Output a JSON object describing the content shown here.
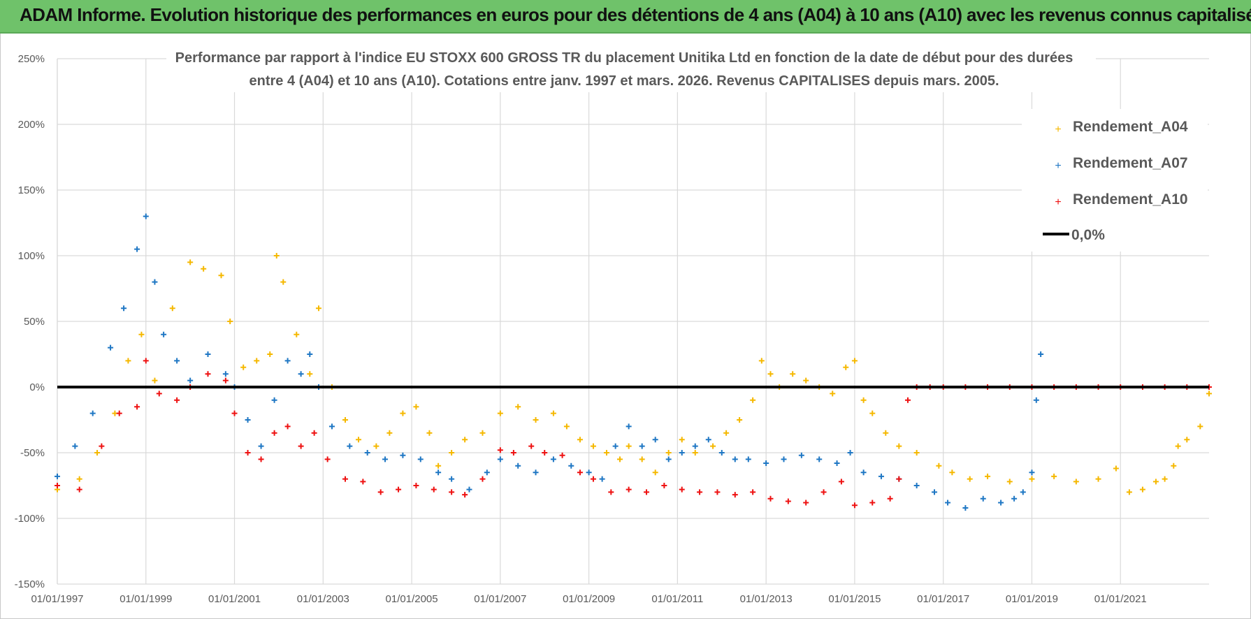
{
  "header": {
    "title": "ADAM Informe. Evolution historique des performances en euros pour des détentions de 4 ans (A04) à 10 ans (A10) avec les revenus connus capitalisés"
  },
  "chart_data": {
    "type": "scatter",
    "title": "",
    "subtitle_line1": "Performance par rapport à l'indice EU STOXX 600 GROSS TR  du placement Unitika Ltd en fonction de la date de début pour des durées",
    "subtitle_line2": "entre 4 (A04) et 10 ans (A10).  Cotations entre janv. 1997 et mars. 2026.  Revenus CAPITALISES depuis mars. 2005.",
    "xlabel": "",
    "ylabel": "",
    "xlim": [
      1997.0,
      2023.0
    ],
    "ylim": [
      -150,
      250
    ],
    "y_ticks": [
      250,
      200,
      150,
      100,
      50,
      0,
      -50,
      -100,
      -150
    ],
    "y_tick_labels": [
      "250%",
      "200%",
      "150%",
      "100%",
      "50%",
      "0%",
      "-50%",
      "-100%",
      "-150%"
    ],
    "x_ticks": [
      1997,
      1999,
      2001,
      2003,
      2005,
      2007,
      2009,
      2011,
      2013,
      2015,
      2017,
      2019,
      2021
    ],
    "x_tick_labels": [
      "01/01/1997",
      "01/01/1999",
      "01/01/2001",
      "01/01/2003",
      "01/01/2005",
      "01/01/2007",
      "01/01/2009",
      "01/01/2011",
      "01/01/2013",
      "01/01/2015",
      "01/01/2017",
      "01/01/2019",
      "01/01/2021"
    ],
    "grid": true,
    "legend_position": "top-right",
    "reference_line": {
      "name": "0,0%",
      "y": 0,
      "color": "#000000"
    },
    "series": [
      {
        "name": "Rendement_A04",
        "color": "#f5b800",
        "x": [
          1997.0,
          1997.5,
          1997.9,
          1998.3,
          1998.6,
          1998.9,
          1999.2,
          1999.6,
          2000.0,
          2000.3,
          2000.7,
          2000.9,
          2001.2,
          2001.5,
          2001.8,
          2001.95,
          2002.1,
          2002.4,
          2002.7,
          2002.9,
          2003.2,
          2003.5,
          2003.8,
          2004.2,
          2004.5,
          2004.8,
          2005.1,
          2005.4,
          2005.6,
          2005.9,
          2006.2,
          2006.6,
          2007.0,
          2007.4,
          2007.8,
          2008.2,
          2008.5,
          2008.8,
          2009.1,
          2009.4,
          2009.7,
          2009.9,
          2010.2,
          2010.5,
          2010.8,
          2011.1,
          2011.4,
          2011.8,
          2012.1,
          2012.4,
          2012.7,
          2012.9,
          2013.1,
          2013.3,
          2013.6,
          2013.9,
          2014.2,
          2014.5,
          2014.8,
          2015.0,
          2015.2,
          2015.4,
          2015.7,
          2016.0,
          2016.4,
          2016.9,
          2017.2,
          2017.6,
          2018.0,
          2018.5,
          2019.0,
          2019.5,
          2020.0,
          2020.5,
          2020.9,
          2021.2,
          2021.5,
          2021.8,
          2022.0,
          2022.2,
          2022.3,
          2022.5,
          2022.8,
          2023.0
        ],
        "values": [
          -78,
          -70,
          -50,
          -20,
          20,
          40,
          5,
          60,
          95,
          90,
          85,
          50,
          15,
          20,
          25,
          100,
          80,
          40,
          10,
          60,
          0,
          -25,
          -40,
          -45,
          -35,
          -20,
          -15,
          -35,
          -60,
          -50,
          -40,
          -35,
          -20,
          -15,
          -25,
          -20,
          -30,
          -40,
          -45,
          -50,
          -55,
          -45,
          -55,
          -65,
          -50,
          -40,
          -50,
          -45,
          -35,
          -25,
          -10,
          20,
          10,
          0,
          10,
          5,
          0,
          -5,
          15,
          20,
          -10,
          -20,
          -35,
          -45,
          -50,
          -60,
          -65,
          -70,
          -68,
          -72,
          -70,
          -68,
          -72,
          -70,
          -62,
          -80,
          -78,
          -72,
          -70,
          -60,
          -45,
          -40,
          -30,
          -5
        ]
      },
      {
        "name": "Rendement_A07",
        "color": "#1f77c4",
        "x": [
          1997.0,
          1997.4,
          1997.8,
          1998.2,
          1998.5,
          1998.8,
          1999.0,
          1999.2,
          1999.4,
          1999.7,
          2000.0,
          2000.4,
          2000.8,
          2001.0,
          2001.3,
          2001.6,
          2001.9,
          2002.2,
          2002.5,
          2002.7,
          2002.9,
          2003.2,
          2003.6,
          2004.0,
          2004.4,
          2004.8,
          2005.2,
          2005.6,
          2005.9,
          2006.3,
          2006.7,
          2007.0,
          2007.4,
          2007.8,
          2008.2,
          2008.6,
          2009.0,
          2009.3,
          2009.6,
          2009.9,
          2010.2,
          2010.5,
          2010.8,
          2011.1,
          2011.4,
          2011.7,
          2012.0,
          2012.3,
          2012.6,
          2013.0,
          2013.4,
          2013.8,
          2014.2,
          2014.6,
          2014.9,
          2015.2,
          2015.6,
          2016.0,
          2016.4,
          2016.8,
          2017.1,
          2017.5,
          2017.9,
          2018.3,
          2018.6,
          2018.8,
          2019.0,
          2019.1,
          2019.2
        ],
        "values": [
          -68,
          -45,
          -20,
          30,
          60,
          105,
          130,
          80,
          40,
          20,
          5,
          25,
          10,
          0,
          -25,
          -45,
          -10,
          20,
          10,
          25,
          0,
          -30,
          -45,
          -50,
          -55,
          -52,
          -55,
          -65,
          -70,
          -78,
          -65,
          -55,
          -60,
          -65,
          -55,
          -60,
          -65,
          -70,
          -45,
          -30,
          -45,
          -40,
          -55,
          -50,
          -45,
          -40,
          -50,
          -55,
          -55,
          -58,
          -55,
          -52,
          -55,
          -58,
          -50,
          -65,
          -68,
          -70,
          -75,
          -80,
          -88,
          -92,
          -85,
          -88,
          -85,
          -80,
          -65,
          -10,
          25
        ]
      },
      {
        "name": "Rendement_A10",
        "color": "#ee1111",
        "x": [
          1997.0,
          1997.5,
          1998.0,
          1998.4,
          1998.8,
          1999.0,
          1999.3,
          1999.7,
          2000.0,
          2000.4,
          2000.8,
          2001.0,
          2001.3,
          2001.6,
          2001.9,
          2002.2,
          2002.5,
          2002.8,
          2003.1,
          2003.5,
          2003.9,
          2004.3,
          2004.7,
          2005.1,
          2005.5,
          2005.9,
          2006.2,
          2006.6,
          2007.0,
          2007.3,
          2007.7,
          2008.0,
          2008.4,
          2008.8,
          2009.1,
          2009.5,
          2009.9,
          2010.3,
          2010.7,
          2011.1,
          2011.5,
          2011.9,
          2012.3,
          2012.7,
          2013.1,
          2013.5,
          2013.9,
          2014.3,
          2014.7,
          2015.0,
          2015.4,
          2015.8,
          2016.0,
          2016.2,
          2016.4,
          2016.7,
          2017.0,
          2017.5,
          2018.0,
          2018.5,
          2019.0,
          2019.5,
          2020.0,
          2020.5,
          2021.0,
          2021.5,
          2022.0,
          2022.5,
          2023.0
        ],
        "values": [
          -75,
          -78,
          -45,
          -20,
          -15,
          20,
          -5,
          -10,
          0,
          10,
          5,
          -20,
          -50,
          -55,
          -35,
          -30,
          -45,
          -35,
          -55,
          -70,
          -72,
          -80,
          -78,
          -75,
          -78,
          -80,
          -82,
          -70,
          -48,
          -50,
          -45,
          -50,
          -52,
          -65,
          -70,
          -80,
          -78,
          -80,
          -75,
          -78,
          -80,
          -80,
          -82,
          -80,
          -85,
          -87,
          -88,
          -80,
          -72,
          -90,
          -88,
          -85,
          -70,
          -10,
          0,
          0,
          0,
          0,
          0,
          0,
          0,
          0,
          0,
          0,
          0,
          0,
          0,
          0,
          0
        ]
      }
    ]
  }
}
